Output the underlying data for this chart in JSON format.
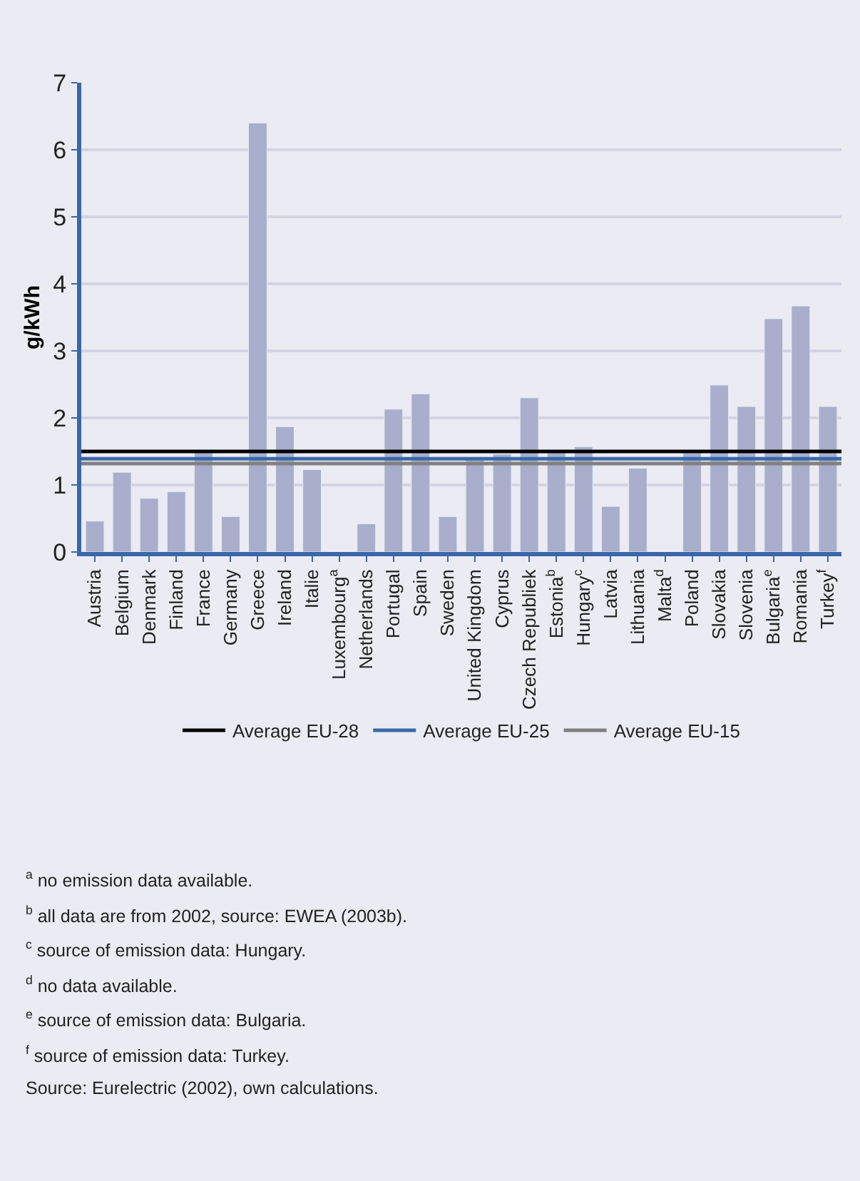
{
  "chart_data": {
    "type": "bar",
    "ylabel": "g/kWh",
    "categories": [
      "Austria",
      "Belgium",
      "Denmark",
      "Finland",
      "France",
      "Germany",
      "Greece",
      "Ireland",
      "Italie",
      "Luxembourg$^{a}$",
      "Netherlands",
      "Portugal",
      "Spain",
      "Sweden",
      "United Kingdom",
      "Cyprus",
      "Czech Republiek",
      "Estonia$^{b}$",
      "Hungary$^{c}$",
      "Latvia",
      "Lithuania",
      "Malta$^{d}$",
      "Poland",
      "Slovakia",
      "Slovenia",
      "Bulgaria$^{e}$",
      "Romania",
      "Turkey$^{f}$"
    ],
    "values": [
      0.46,
      1.19,
      0.8,
      0.9,
      1.52,
      0.53,
      6.4,
      1.87,
      1.23,
      null,
      0.42,
      2.13,
      2.36,
      0.53,
      1.4,
      1.46,
      2.3,
      1.52,
      1.57,
      0.68,
      1.25,
      null,
      1.48,
      2.49,
      2.17,
      3.48,
      3.67,
      2.17
    ],
    "color": "#a8aecb",
    "ylim": [
      0,
      7
    ],
    "yticks": [
      0,
      1,
      2,
      3,
      4,
      5,
      6,
      7
    ],
    "grid": "y",
    "legend": "bottom",
    "ref_lines": [
      {
        "axis": "y",
        "value": 1.5,
        "label": "Average EU-28",
        "color": "#000000"
      },
      {
        "axis": "y",
        "value": 1.39,
        "label": "Average EU-25",
        "color": "#3a67a8"
      },
      {
        "axis": "y",
        "value": 1.32,
        "label": "Average EU-15",
        "color": "#808080"
      }
    ],
    "annotations": [
      "$^{a}$ no emission data available.",
      "$^{b}$ all data are from 2002, source: EWEA (2003b).",
      "$^{c}$ source of emission data: Hungary.",
      "$^{d}$ no data available.",
      "$^{e}$ source of emission data: Bulgaria.",
      "$^{f}$ source of emission data: Turkey.",
      "Source: Eurelectric (2002), own calculations."
    ]
  }
}
